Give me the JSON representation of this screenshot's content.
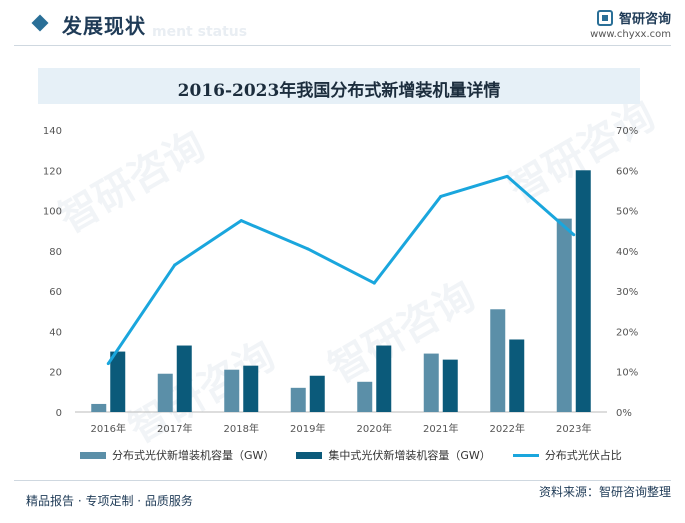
{
  "header": {
    "section_title": "发展现状",
    "section_subtitle": "ment status",
    "brand_name": "智研咨询",
    "brand_url": "www.chyxx.com"
  },
  "chart_data": {
    "type": "bar",
    "title": "2016-2023年我国分布式新增装机量详情",
    "categories": [
      "2016年",
      "2017年",
      "2018年",
      "2019年",
      "2020年",
      "2021年",
      "2022年",
      "2023年"
    ],
    "series": [
      {
        "name": "分布式光伏新增装机容量（GW）",
        "type": "bar",
        "axis": "left",
        "color": "#5b8fa8",
        "values": [
          4,
          19,
          21,
          12,
          15,
          29,
          51,
          96
        ]
      },
      {
        "name": "集中式光伏新增装机容量（GW）",
        "type": "bar",
        "axis": "left",
        "color": "#0b5a7a",
        "values": [
          30,
          33,
          23,
          18,
          33,
          26,
          36,
          120
        ]
      },
      {
        "name": "分布式光伏占比",
        "type": "line",
        "axis": "right",
        "color": "#1aa6dd",
        "values": [
          12,
          36.5,
          47.5,
          40.5,
          32,
          53.5,
          58.5,
          44
        ]
      }
    ],
    "y_left": {
      "min": 0,
      "max": 140,
      "ticks": [
        "0",
        "20",
        "40",
        "60",
        "80",
        "100",
        "120",
        "140"
      ]
    },
    "y_right": {
      "min": 0,
      "max": 70,
      "ticks": [
        "0%",
        "10%",
        "20%",
        "30%",
        "40%",
        "50%",
        "60%",
        "70%"
      ]
    },
    "grid": false,
    "legend_position": "bottom"
  },
  "footer": {
    "left_text": "精品报告 · 专项定制 · 品质服务",
    "source_text": "资料来源：智研咨询整理"
  },
  "watermark_text": "智研咨询"
}
